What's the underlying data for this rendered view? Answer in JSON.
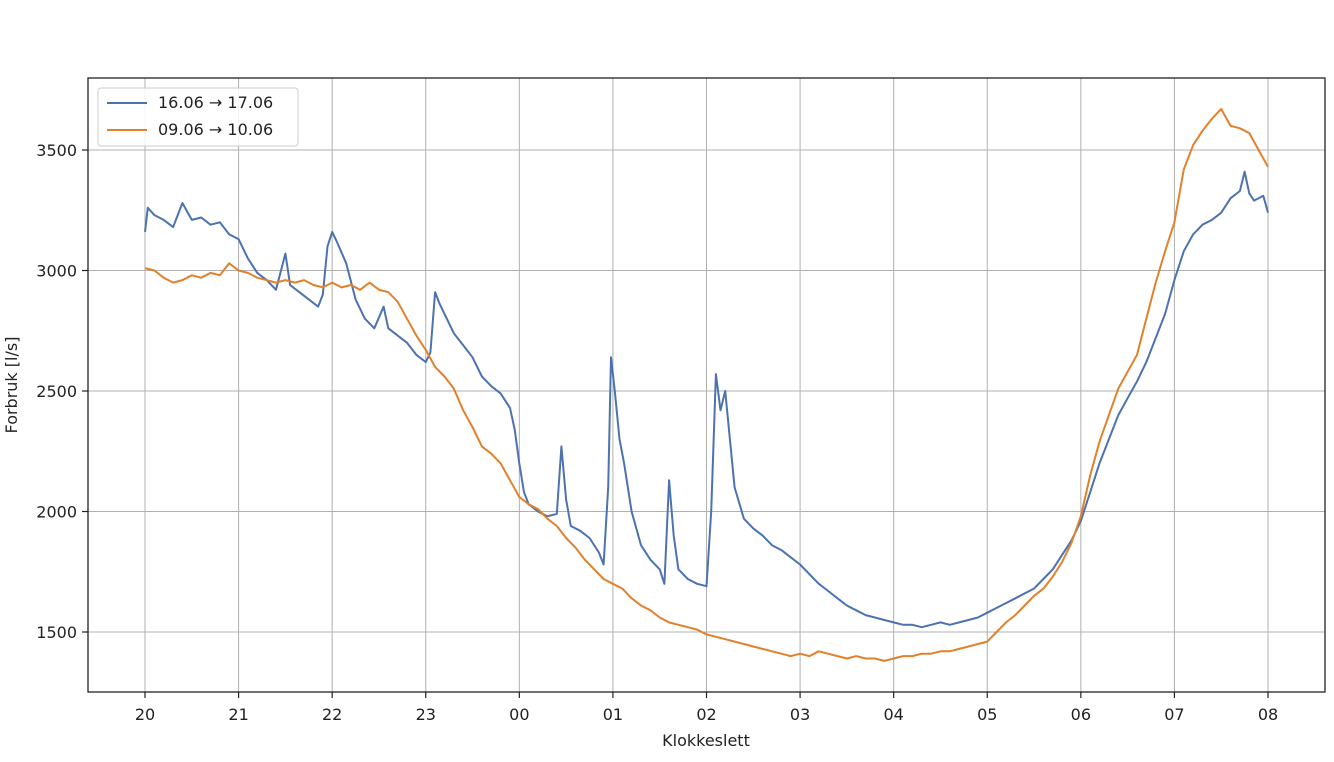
{
  "chart_data": {
    "type": "line",
    "title": "",
    "xlabel": "Klokkeslett",
    "ylabel": "Forbruk [l/s]",
    "x_ticks": [
      "20",
      "21",
      "22",
      "23",
      "00",
      "01",
      "02",
      "03",
      "04",
      "05",
      "06",
      "07",
      "08"
    ],
    "y_ticks": [
      1500,
      2000,
      2500,
      3000,
      3500
    ],
    "xlim_hours": [
      19.4,
      20.3
    ],
    "ylim": [
      1250,
      3800
    ],
    "grid": true,
    "legend_position": "top-left",
    "series": [
      {
        "name": "16.06 → 17.06",
        "color": "#4c72b0",
        "points": [
          [
            0.0,
            3160
          ],
          [
            0.03,
            3260
          ],
          [
            0.1,
            3230
          ],
          [
            0.2,
            3210
          ],
          [
            0.3,
            3180
          ],
          [
            0.4,
            3280
          ],
          [
            0.5,
            3210
          ],
          [
            0.6,
            3220
          ],
          [
            0.7,
            3190
          ],
          [
            0.8,
            3200
          ],
          [
            0.9,
            3150
          ],
          [
            1.0,
            3130
          ],
          [
            1.1,
            3050
          ],
          [
            1.2,
            2990
          ],
          [
            1.3,
            2960
          ],
          [
            1.4,
            2920
          ],
          [
            1.5,
            3070
          ],
          [
            1.55,
            2940
          ],
          [
            1.65,
            2910
          ],
          [
            1.75,
            2880
          ],
          [
            1.85,
            2850
          ],
          [
            1.9,
            2900
          ],
          [
            1.95,
            3100
          ],
          [
            2.0,
            3160
          ],
          [
            2.05,
            3120
          ],
          [
            2.15,
            3030
          ],
          [
            2.25,
            2880
          ],
          [
            2.35,
            2800
          ],
          [
            2.45,
            2760
          ],
          [
            2.55,
            2850
          ],
          [
            2.6,
            2760
          ],
          [
            2.7,
            2730
          ],
          [
            2.8,
            2700
          ],
          [
            2.9,
            2650
          ],
          [
            3.0,
            2620
          ],
          [
            3.05,
            2660
          ],
          [
            3.1,
            2910
          ],
          [
            3.15,
            2860
          ],
          [
            3.3,
            2740
          ],
          [
            3.4,
            2690
          ],
          [
            3.5,
            2640
          ],
          [
            3.6,
            2560
          ],
          [
            3.7,
            2520
          ],
          [
            3.8,
            2490
          ],
          [
            3.9,
            2430
          ],
          [
            3.95,
            2340
          ],
          [
            4.0,
            2200
          ],
          [
            4.05,
            2080
          ],
          [
            4.1,
            2030
          ],
          [
            4.2,
            2000
          ],
          [
            4.3,
            1980
          ],
          [
            4.4,
            1990
          ],
          [
            4.45,
            2270
          ],
          [
            4.5,
            2050
          ],
          [
            4.55,
            1940
          ],
          [
            4.65,
            1920
          ],
          [
            4.75,
            1890
          ],
          [
            4.85,
            1830
          ],
          [
            4.9,
            1780
          ],
          [
            4.95,
            2100
          ],
          [
            4.98,
            2640
          ],
          [
            5.02,
            2500
          ],
          [
            5.07,
            2300
          ],
          [
            5.12,
            2200
          ],
          [
            5.2,
            2000
          ],
          [
            5.3,
            1860
          ],
          [
            5.4,
            1800
          ],
          [
            5.5,
            1760
          ],
          [
            5.55,
            1700
          ],
          [
            5.6,
            2130
          ],
          [
            5.65,
            1900
          ],
          [
            5.7,
            1760
          ],
          [
            5.8,
            1720
          ],
          [
            5.9,
            1700
          ],
          [
            6.0,
            1690
          ],
          [
            6.05,
            2000
          ],
          [
            6.1,
            2570
          ],
          [
            6.15,
            2420
          ],
          [
            6.2,
            2500
          ],
          [
            6.25,
            2300
          ],
          [
            6.3,
            2100
          ],
          [
            6.4,
            1970
          ],
          [
            6.5,
            1930
          ],
          [
            6.6,
            1900
          ],
          [
            6.7,
            1860
          ],
          [
            6.8,
            1840
          ],
          [
            6.9,
            1810
          ],
          [
            7.0,
            1780
          ],
          [
            7.1,
            1740
          ],
          [
            7.2,
            1700
          ],
          [
            7.3,
            1670
          ],
          [
            7.4,
            1640
          ],
          [
            7.5,
            1610
          ],
          [
            7.6,
            1590
          ],
          [
            7.7,
            1570
          ],
          [
            7.8,
            1560
          ],
          [
            7.9,
            1550
          ],
          [
            8.0,
            1540
          ],
          [
            8.1,
            1530
          ],
          [
            8.2,
            1530
          ],
          [
            8.3,
            1520
          ],
          [
            8.4,
            1530
          ],
          [
            8.5,
            1540
          ],
          [
            8.6,
            1530
          ],
          [
            8.7,
            1540
          ],
          [
            8.8,
            1550
          ],
          [
            8.9,
            1560
          ],
          [
            9.0,
            1580
          ],
          [
            9.1,
            1600
          ],
          [
            9.2,
            1620
          ],
          [
            9.3,
            1640
          ],
          [
            9.4,
            1660
          ],
          [
            9.5,
            1680
          ],
          [
            9.6,
            1720
          ],
          [
            9.7,
            1760
          ],
          [
            9.8,
            1820
          ],
          [
            9.9,
            1880
          ],
          [
            10.0,
            1960
          ],
          [
            10.1,
            2080
          ],
          [
            10.2,
            2200
          ],
          [
            10.3,
            2300
          ],
          [
            10.4,
            2400
          ],
          [
            10.5,
            2470
          ],
          [
            10.6,
            2540
          ],
          [
            10.7,
            2620
          ],
          [
            10.8,
            2720
          ],
          [
            10.9,
            2820
          ],
          [
            11.0,
            2960
          ],
          [
            11.1,
            3080
          ],
          [
            11.2,
            3150
          ],
          [
            11.3,
            3190
          ],
          [
            11.4,
            3210
          ],
          [
            11.5,
            3240
          ],
          [
            11.6,
            3300
          ],
          [
            11.7,
            3330
          ],
          [
            11.75,
            3410
          ],
          [
            11.8,
            3320
          ],
          [
            11.85,
            3290
          ],
          [
            11.9,
            3300
          ],
          [
            11.95,
            3310
          ],
          [
            12.0,
            3240
          ]
        ]
      },
      {
        "name": "09.06 → 10.06",
        "color": "#e1812c",
        "points": [
          [
            0.0,
            3010
          ],
          [
            0.1,
            3000
          ],
          [
            0.2,
            2970
          ],
          [
            0.3,
            2950
          ],
          [
            0.4,
            2960
          ],
          [
            0.5,
            2980
          ],
          [
            0.6,
            2970
          ],
          [
            0.7,
            2990
          ],
          [
            0.8,
            2980
          ],
          [
            0.9,
            3030
          ],
          [
            1.0,
            3000
          ],
          [
            1.1,
            2990
          ],
          [
            1.2,
            2970
          ],
          [
            1.3,
            2960
          ],
          [
            1.4,
            2950
          ],
          [
            1.5,
            2960
          ],
          [
            1.6,
            2950
          ],
          [
            1.7,
            2960
          ],
          [
            1.8,
            2940
          ],
          [
            1.9,
            2930
          ],
          [
            2.0,
            2950
          ],
          [
            2.1,
            2930
          ],
          [
            2.2,
            2940
          ],
          [
            2.3,
            2920
          ],
          [
            2.4,
            2950
          ],
          [
            2.5,
            2920
          ],
          [
            2.6,
            2910
          ],
          [
            2.7,
            2870
          ],
          [
            2.8,
            2800
          ],
          [
            2.9,
            2730
          ],
          [
            3.0,
            2670
          ],
          [
            3.1,
            2600
          ],
          [
            3.2,
            2560
          ],
          [
            3.3,
            2510
          ],
          [
            3.4,
            2420
          ],
          [
            3.5,
            2350
          ],
          [
            3.6,
            2270
          ],
          [
            3.7,
            2240
          ],
          [
            3.8,
            2200
          ],
          [
            3.9,
            2130
          ],
          [
            4.0,
            2060
          ],
          [
            4.1,
            2030
          ],
          [
            4.2,
            2010
          ],
          [
            4.3,
            1970
          ],
          [
            4.4,
            1940
          ],
          [
            4.5,
            1890
          ],
          [
            4.6,
            1850
          ],
          [
            4.7,
            1800
          ],
          [
            4.8,
            1760
          ],
          [
            4.9,
            1720
          ],
          [
            5.0,
            1700
          ],
          [
            5.1,
            1680
          ],
          [
            5.2,
            1640
          ],
          [
            5.3,
            1610
          ],
          [
            5.4,
            1590
          ],
          [
            5.5,
            1560
          ],
          [
            5.6,
            1540
          ],
          [
            5.7,
            1530
          ],
          [
            5.8,
            1520
          ],
          [
            5.9,
            1510
          ],
          [
            6.0,
            1490
          ],
          [
            6.1,
            1480
          ],
          [
            6.2,
            1470
          ],
          [
            6.3,
            1460
          ],
          [
            6.4,
            1450
          ],
          [
            6.5,
            1440
          ],
          [
            6.6,
            1430
          ],
          [
            6.7,
            1420
          ],
          [
            6.8,
            1410
          ],
          [
            6.9,
            1400
          ],
          [
            7.0,
            1410
          ],
          [
            7.1,
            1400
          ],
          [
            7.2,
            1420
          ],
          [
            7.3,
            1410
          ],
          [
            7.4,
            1400
          ],
          [
            7.5,
            1390
          ],
          [
            7.6,
            1400
          ],
          [
            7.7,
            1390
          ],
          [
            7.8,
            1390
          ],
          [
            7.9,
            1380
          ],
          [
            8.0,
            1390
          ],
          [
            8.1,
            1400
          ],
          [
            8.2,
            1400
          ],
          [
            8.3,
            1410
          ],
          [
            8.4,
            1410
          ],
          [
            8.5,
            1420
          ],
          [
            8.6,
            1420
          ],
          [
            8.7,
            1430
          ],
          [
            8.8,
            1440
          ],
          [
            8.9,
            1450
          ],
          [
            9.0,
            1460
          ],
          [
            9.1,
            1500
          ],
          [
            9.2,
            1540
          ],
          [
            9.3,
            1570
          ],
          [
            9.4,
            1610
          ],
          [
            9.5,
            1650
          ],
          [
            9.6,
            1680
          ],
          [
            9.7,
            1730
          ],
          [
            9.8,
            1790
          ],
          [
            9.9,
            1870
          ],
          [
            10.0,
            1980
          ],
          [
            10.1,
            2150
          ],
          [
            10.2,
            2290
          ],
          [
            10.3,
            2400
          ],
          [
            10.4,
            2510
          ],
          [
            10.5,
            2580
          ],
          [
            10.6,
            2650
          ],
          [
            10.7,
            2800
          ],
          [
            10.8,
            2950
          ],
          [
            10.9,
            3080
          ],
          [
            11.0,
            3200
          ],
          [
            11.1,
            3420
          ],
          [
            11.2,
            3520
          ],
          [
            11.3,
            3580
          ],
          [
            11.4,
            3630
          ],
          [
            11.5,
            3670
          ],
          [
            11.6,
            3600
          ],
          [
            11.7,
            3590
          ],
          [
            11.8,
            3570
          ],
          [
            11.9,
            3500
          ],
          [
            12.0,
            3430
          ]
        ]
      }
    ]
  }
}
